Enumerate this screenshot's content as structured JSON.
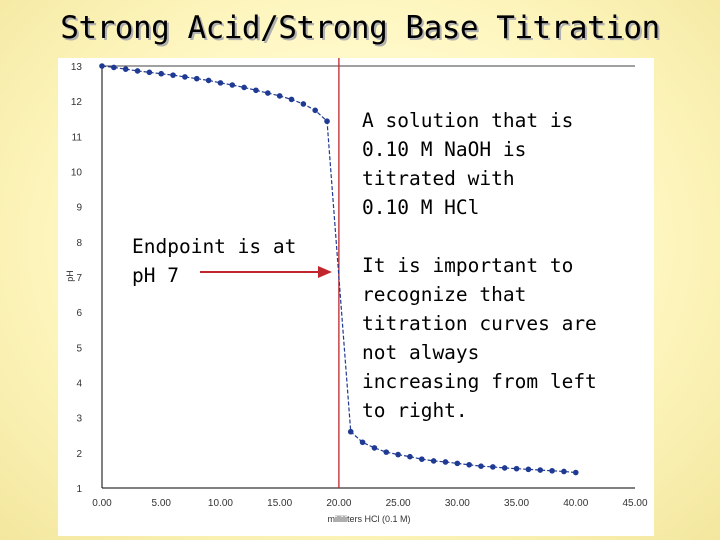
{
  "slide": {
    "title": "Strong Acid/Strong Base Titration"
  },
  "annotations": {
    "endpoint": "Endpoint is at\npH 7",
    "solution": "A solution that is\n0.10 M NaOH is\ntitrated with\n0.10 M HCl",
    "important": "It is important to\nrecognize that\ntitration curves are\nnot always\nincreasing from left\nto right."
  },
  "colors": {
    "series": "#1f3a93",
    "endpoint_line": "#c0262b",
    "arrow": "#c0262b",
    "axis": "#000000"
  },
  "chart_data": {
    "type": "line",
    "title": "",
    "xlabel": "milliliters HCl (0.1 M)",
    "ylabel": "pH",
    "xlim": [
      0,
      45
    ],
    "ylim": [
      1,
      13
    ],
    "x_ticks": [
      "0.00",
      "5.00",
      "10.00",
      "15.00",
      "20.00",
      "25.00",
      "30.00",
      "35.00",
      "40.00",
      "45.00"
    ],
    "y_ticks": [
      "1",
      "2",
      "3",
      "4",
      "5",
      "6",
      "7",
      "8",
      "9",
      "10",
      "11",
      "12",
      "13"
    ],
    "endpoint_x": 20,
    "grid": false,
    "series": [
      {
        "x": [
          0,
          1,
          2,
          3,
          4,
          5,
          6,
          7,
          8,
          9,
          10,
          11,
          12,
          13,
          14,
          15,
          16,
          17,
          18,
          19,
          20,
          21,
          22,
          23,
          24,
          25,
          26,
          27,
          28,
          29,
          30,
          31,
          32,
          33,
          34,
          35,
          36,
          37,
          38,
          39,
          40
        ],
        "y": [
          13.0,
          12.96,
          12.91,
          12.86,
          12.82,
          12.78,
          12.74,
          12.69,
          12.64,
          12.59,
          12.52,
          12.46,
          12.39,
          12.31,
          12.23,
          12.15,
          12.05,
          11.92,
          11.74,
          11.43,
          7.0,
          2.6,
          2.3,
          2.14,
          2.02,
          1.95,
          1.89,
          1.82,
          1.77,
          1.74,
          1.7,
          1.66,
          1.62,
          1.6,
          1.57,
          1.55,
          1.53,
          1.51,
          1.49,
          1.47,
          1.44
        ]
      }
    ]
  }
}
